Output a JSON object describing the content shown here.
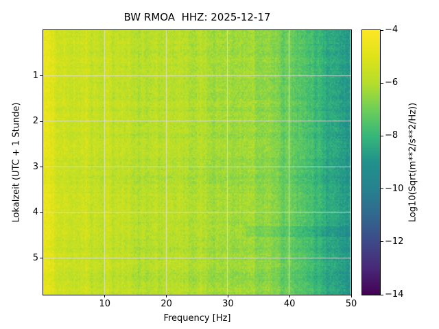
{
  "figure": {
    "background": "#ffffff"
  },
  "chart_data": {
    "type": "heatmap",
    "title": "BW RMOA  HHZ: 2025-12-17",
    "xlabel": "Frequency [Hz]",
    "ylabel": "Lokalzeit (UTC + 1 Stunde)",
    "colorbar_label": "Log10(Sqrt(m**2/s**2/Hz))",
    "x_range_hz": [
      0,
      50
    ],
    "y_range_hours": [
      0,
      5.8
    ],
    "xticks": [
      10,
      20,
      30,
      40,
      50
    ],
    "yticks": [
      1,
      2,
      3,
      4,
      5
    ],
    "colorbar_ticks": [
      -4,
      -6,
      -8,
      -10,
      -12,
      -14
    ],
    "color_limits": [
      -14,
      -4
    ],
    "colormap": "viridis",
    "grid": true,
    "grid_color": "#dedede",
    "viridis_stops": [
      [
        0.0,
        "#440154"
      ],
      [
        0.1,
        "#482878"
      ],
      [
        0.2,
        "#3e4989"
      ],
      [
        0.3,
        "#31688e"
      ],
      [
        0.4,
        "#26828e"
      ],
      [
        0.5,
        "#21918c"
      ],
      [
        0.6,
        "#35b779"
      ],
      [
        0.7,
        "#6ece58"
      ],
      [
        0.8,
        "#b5de2b"
      ],
      [
        0.9,
        "#dfe318"
      ],
      [
        1.0,
        "#fde725"
      ]
    ],
    "spectrum_profile": {
      "freq_hz": [
        0,
        0.5,
        1,
        2,
        3,
        5,
        8,
        12,
        16,
        20,
        24,
        28,
        32,
        35,
        38,
        40,
        42,
        44,
        46,
        48,
        50
      ],
      "log10_amp": [
        -4.6,
        -4.9,
        -5.1,
        -5.3,
        -5.4,
        -5.55,
        -5.65,
        -5.75,
        -5.85,
        -5.95,
        -6.05,
        -6.2,
        -6.35,
        -6.55,
        -6.85,
        -7.1,
        -7.5,
        -7.9,
        -8.3,
        -8.6,
        -8.8
      ]
    },
    "anomaly_bands": [
      {
        "hours": [
          4.3,
          4.55
        ],
        "freq_hz": [
          33,
          50
        ],
        "delta_log10": -0.45
      }
    ],
    "texture_noise_sigma": 0.28
  }
}
